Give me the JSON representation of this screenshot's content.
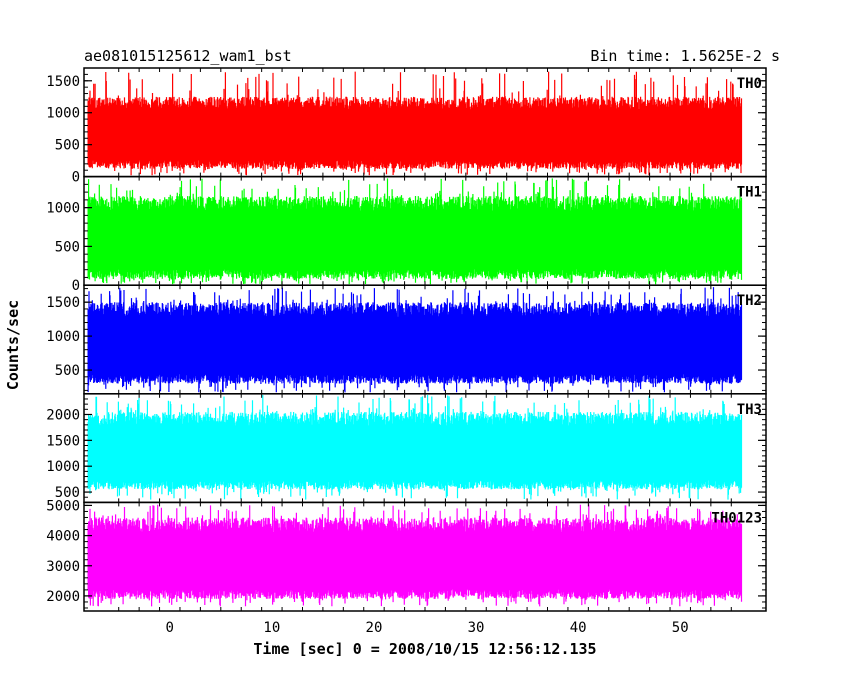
{
  "header": {
    "title": "ae081015125612_wam1_bst",
    "bin_time": "Bin time: 1.5625E-2 s"
  },
  "chart_data": {
    "type": "line",
    "xlabel": "Time [sec] 0 = 2008/10/15 12:56:12.135",
    "ylabel": "Counts/sec",
    "xlim": [
      -8.4,
      58.4
    ],
    "x_data_range": [
      -8.0,
      56.0
    ],
    "xticks": [
      0,
      10,
      20,
      30,
      40,
      50
    ],
    "xtick_labels": [
      "0",
      "10",
      "20",
      "30",
      "40",
      "50"
    ],
    "bin_time_s": 0.015625,
    "panels": [
      {
        "name": "TH0",
        "color": "#ff0000",
        "ylim": [
          0,
          1700
        ],
        "yticks": [
          0,
          500,
          1000,
          1500
        ],
        "ytick_labels": [
          "0",
          "500",
          "1000",
          "1500"
        ],
        "typical_range": [
          120,
          1250
        ],
        "peak_max": 1650,
        "trough_min": 20
      },
      {
        "name": "TH1",
        "color": "#00ff00",
        "ylim": [
          0,
          1400
        ],
        "yticks": [
          0,
          500,
          1000
        ],
        "ytick_labels": [
          "0",
          "500",
          "1000"
        ],
        "typical_range": [
          80,
          1150
        ],
        "peak_max": 1380,
        "trough_min": 10
      },
      {
        "name": "TH2",
        "color": "#0000ff",
        "ylim": [
          150,
          1750
        ],
        "yticks": [
          500,
          1000,
          1500
        ],
        "ytick_labels": [
          "500",
          "1000",
          "1500"
        ],
        "typical_range": [
          300,
          1500
        ],
        "peak_max": 1730,
        "trough_min": 170
      },
      {
        "name": "TH3",
        "color": "#00ffff",
        "ylim": [
          300,
          2400
        ],
        "yticks": [
          500,
          1000,
          1500,
          2000
        ],
        "ytick_labels": [
          "500",
          "1000",
          "1500",
          "2000"
        ],
        "typical_range": [
          550,
          2050
        ],
        "peak_max": 2380,
        "trough_min": 350
      },
      {
        "name": "TH0123",
        "color": "#ff00ff",
        "ylim": [
          1500,
          5100
        ],
        "yticks": [
          2000,
          3000,
          4000,
          5000
        ],
        "ytick_labels": [
          "2000",
          "3000",
          "4000",
          "5000"
        ],
        "typical_range": [
          1900,
          4600
        ],
        "peak_max": 5050,
        "trough_min": 1650
      }
    ]
  }
}
